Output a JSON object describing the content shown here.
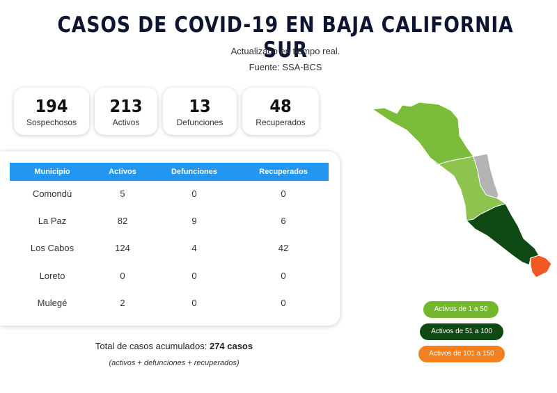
{
  "header": {
    "title": "CASOS DE COVID-19 EN BAJA CALIFORNIA SUR",
    "updated": "Actualizado en tiempo real.",
    "source": "Fuente: SSA-BCS"
  },
  "summary": [
    {
      "value": "194",
      "label": "Sospechosos"
    },
    {
      "value": "213",
      "label": "Activos"
    },
    {
      "value": "13",
      "label": "Defunciones"
    },
    {
      "value": "48",
      "label": "Recuperados"
    }
  ],
  "table": {
    "headers": [
      "Municipio",
      "Activos",
      "Defunciones",
      "Recuperados"
    ],
    "rows": [
      [
        "Comondú",
        "5",
        "0",
        "0"
      ],
      [
        "La Paz",
        "82",
        "9",
        "6"
      ],
      [
        "Los Cabos",
        "124",
        "4",
        "42"
      ],
      [
        "Loreto",
        "0",
        "0",
        "0"
      ],
      [
        "Mulegé",
        "2",
        "0",
        "0"
      ]
    ]
  },
  "totals": {
    "label": "Total de casos acumulados:",
    "value": "274 casos",
    "note": "(activos + defunciones + recuperados)"
  },
  "legend": [
    {
      "label": "Activos de 1 a 50",
      "color": "#74b72e"
    },
    {
      "label": "Activos de 51 a 100",
      "color": "#0f4a14"
    },
    {
      "label": "Activos de 101 a 150",
      "color": "#f28020"
    }
  ],
  "map_colors": {
    "mulege": "#7bbd3a",
    "comondu": "#8dc34f",
    "loreto": "#b3b3b3",
    "lapaz": "#0f4a14",
    "loscabos": "#f05a22"
  }
}
